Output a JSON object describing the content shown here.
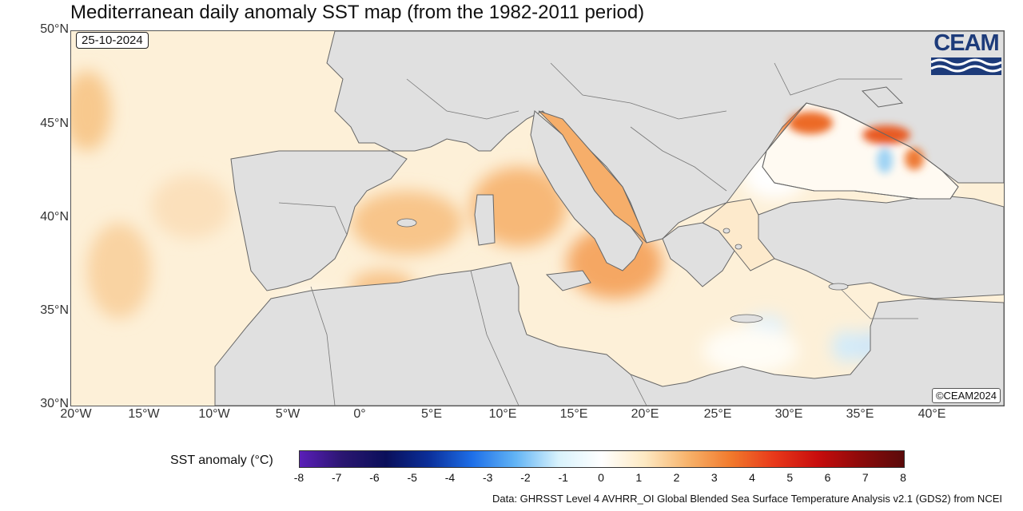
{
  "title": "Mediterranean daily anomaly SST map (from the 1982-2011 period)",
  "date": "25-10-2024",
  "logo_text": "CEAM",
  "credit": "©CEAM2024",
  "source": "Data: GHRSST Level 4 AVHRR_OI Global Blended Sea Surface Temperature Analysis v2.1 (GDS2) from NCEI",
  "colorbar": {
    "label": "SST anomaly (°C)",
    "ticks": [
      "-8",
      "-7",
      "-6",
      "-5",
      "-4",
      "-3",
      "-2",
      "-1",
      "0",
      "1",
      "2",
      "3",
      "4",
      "5",
      "6",
      "7",
      "8"
    ],
    "colors": [
      "#5a1eb8",
      "#2a1670",
      "#0a0f5a",
      "#0b2f9a",
      "#1e6fe8",
      "#62b4f5",
      "#d8f2fc",
      "#ffffff",
      "#fde9c2",
      "#f7b26a",
      "#f1792c",
      "#e8381a",
      "#c80d0d",
      "#8c0a0a",
      "#5a0a0a"
    ]
  },
  "axes": {
    "lat_labels": [
      "50°N",
      "45°N",
      "40°N",
      "35°N",
      "30°N"
    ],
    "lon_labels": [
      "20°W",
      "15°W",
      "10°W",
      "5°W",
      "0°",
      "5°E",
      "10°E",
      "15°E",
      "20°E",
      "25°E",
      "30°E",
      "35°E",
      "40°E"
    ]
  },
  "colors": {
    "land": "#e0e0e0",
    "border": "#666666",
    "ocean_base": "#fde9c2",
    "warm": "#f6b26b",
    "hot": "#ee6a24",
    "cool": "#cfe9f8"
  }
}
